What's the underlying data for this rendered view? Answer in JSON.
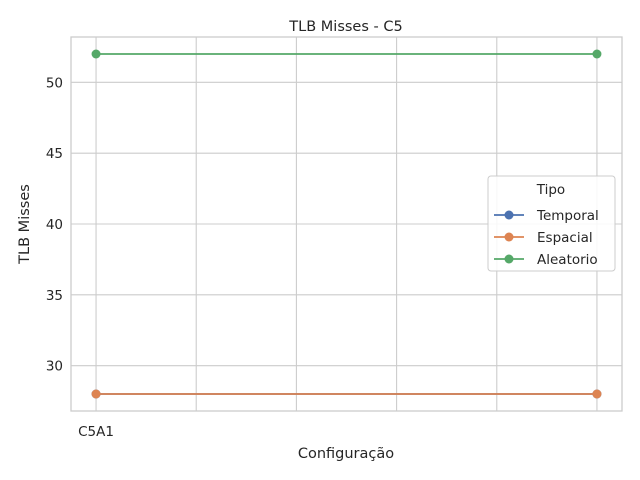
{
  "chart_data": {
    "type": "line",
    "title": "TLB Misses - C5",
    "xlabel": "Configuração",
    "ylabel": "TLB Misses",
    "x_tick_labels": [
      "C5A1"
    ],
    "x_positions": [
      0,
      5
    ],
    "xlim": [
      -0.25,
      5.25
    ],
    "ylim": [
      26.8,
      53.2
    ],
    "y_ticks": [
      30,
      35,
      40,
      45,
      50
    ],
    "grid": true,
    "legend": {
      "title": "Tipo",
      "placement": "center-right"
    },
    "series": [
      {
        "name": "Temporal",
        "color": "#4c72b0",
        "x": [
          0,
          5
        ],
        "values": [
          28,
          28
        ]
      },
      {
        "name": "Espacial",
        "color": "#dd8452",
        "x": [
          0,
          5
        ],
        "values": [
          28,
          28
        ]
      },
      {
        "name": "Aleatorio",
        "color": "#55a868",
        "x": [
          0,
          5
        ],
        "values": [
          52,
          52
        ]
      }
    ]
  }
}
